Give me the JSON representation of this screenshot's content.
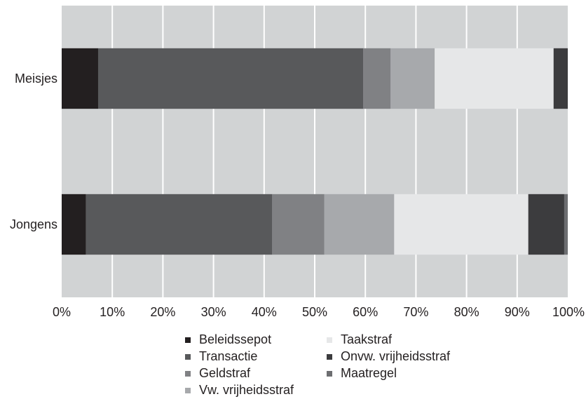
{
  "chart_data": {
    "type": "bar",
    "orientation": "horizontal",
    "stacked": true,
    "categories": [
      "Meisjes",
      "Jongens"
    ],
    "xlim": [
      0,
      100
    ],
    "x_ticks": [
      "0%",
      "10%",
      "20%",
      "30%",
      "40%",
      "50%",
      "60%",
      "70%",
      "80%",
      "90%",
      "100%"
    ],
    "grid": true,
    "legend_position": "bottom",
    "series": [
      {
        "name": "Beleidssepot",
        "color": "#231f20",
        "values": [
          7.2,
          4.8
        ]
      },
      {
        "name": "Transactie",
        "color": "#58595b",
        "values": [
          52.4,
          36.8
        ]
      },
      {
        "name": "Geldstraf",
        "color": "#808184",
        "values": [
          5.4,
          10.3
        ]
      },
      {
        "name": "Vw. vrijheidsstraf",
        "color": "#a7a9ac",
        "values": [
          8.7,
          13.8
        ]
      },
      {
        "name": "Taakstraf",
        "color": "#e6e7e8",
        "values": [
          23.5,
          26.5
        ]
      },
      {
        "name": "Onvw. vrijheidsstraf",
        "color": "#3c3c3e",
        "values": [
          2.8,
          7.1
        ]
      },
      {
        "name": "Maatregel",
        "color": "#6d6e71",
        "values": [
          0.0,
          0.8
        ]
      }
    ]
  }
}
